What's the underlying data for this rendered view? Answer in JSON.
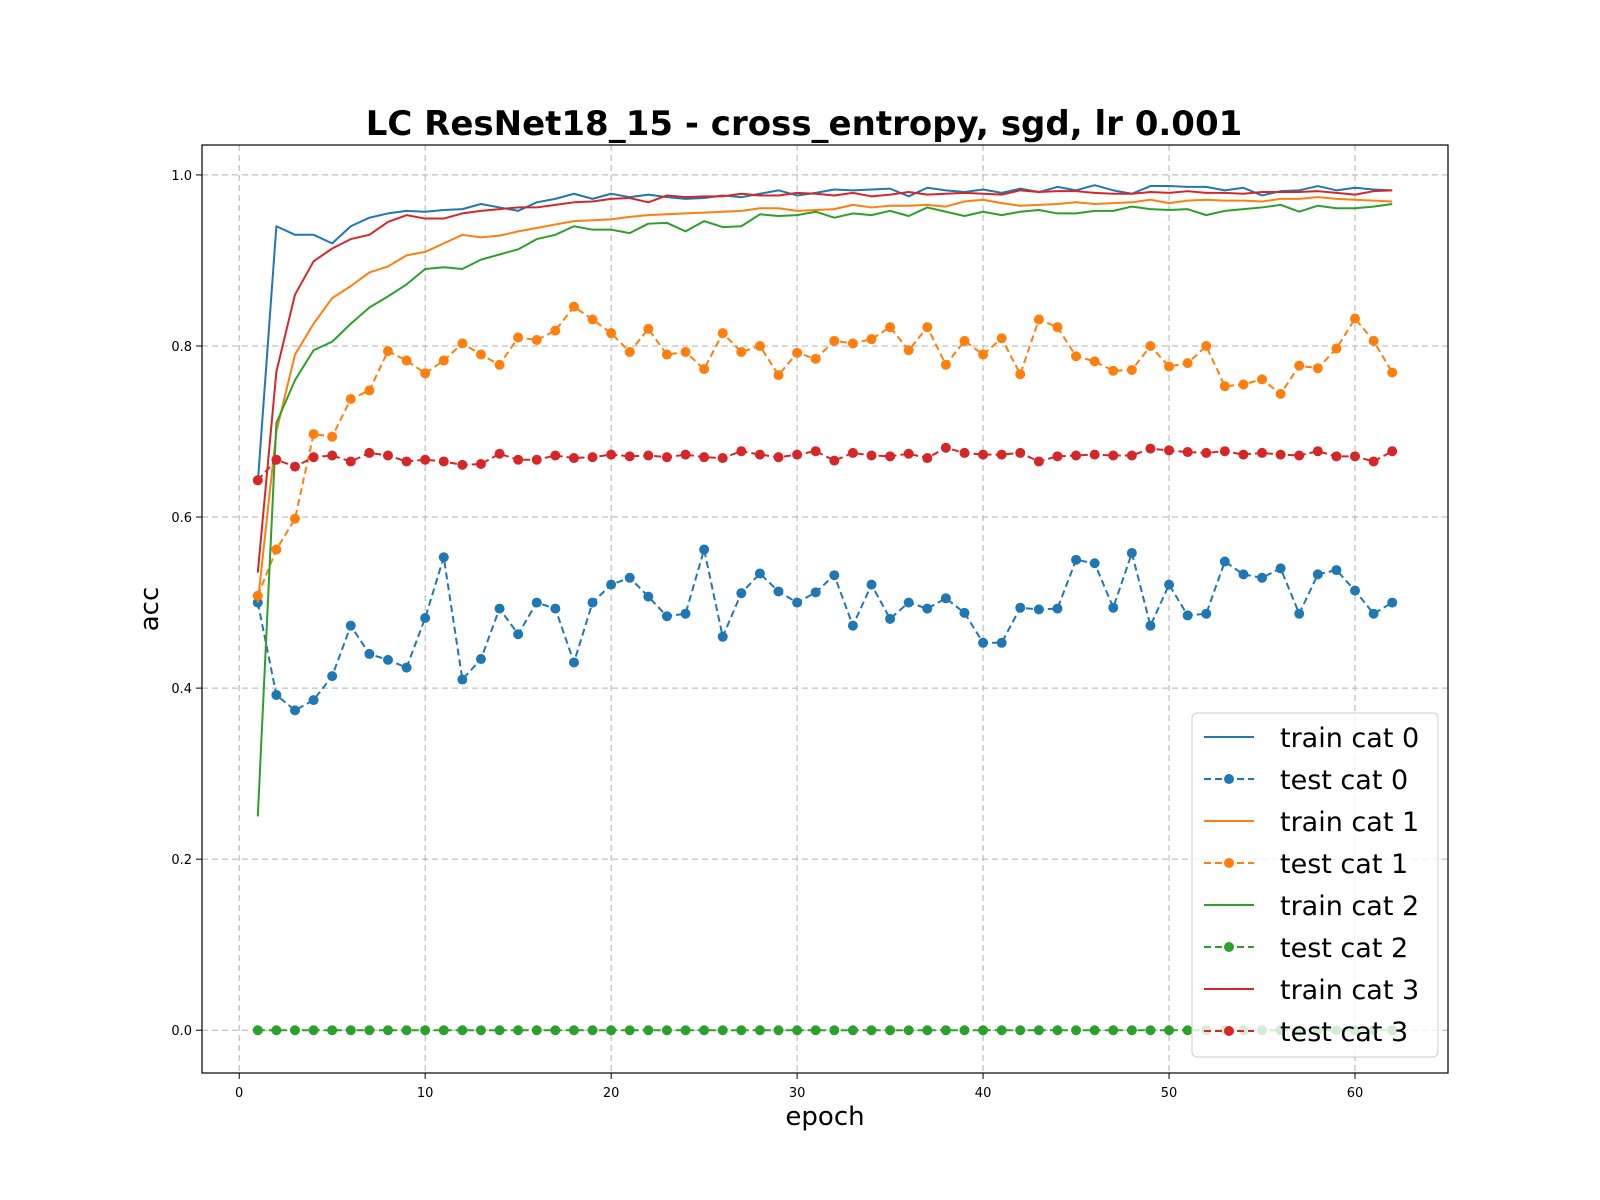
{
  "chart_data": {
    "type": "line",
    "title": "LC ResNet18_15 - cross_entropy, sgd, lr 0.001",
    "xlabel": "epoch",
    "ylabel": "acc",
    "xlim": [
      -2,
      65
    ],
    "ylim": [
      -0.05,
      1.035
    ],
    "xticks": [
      0,
      10,
      20,
      30,
      40,
      50,
      60
    ],
    "xtick_labels": [
      "0",
      "10",
      "20",
      "30",
      "40",
      "50",
      "60"
    ],
    "yticks": [
      0.0,
      0.2,
      0.4,
      0.6,
      0.8,
      1.0
    ],
    "ytick_labels": [
      "0.0",
      "0.2",
      "0.4",
      "0.6",
      "0.8",
      "1.0"
    ],
    "grid": true,
    "legend_position": "lower-right",
    "x": [
      1,
      2,
      3,
      4,
      5,
      6,
      7,
      8,
      9,
      10,
      11,
      12,
      13,
      14,
      15,
      16,
      17,
      18,
      19,
      20,
      21,
      22,
      23,
      24,
      25,
      26,
      27,
      28,
      29,
      30,
      31,
      32,
      33,
      34,
      35,
      36,
      37,
      38,
      39,
      40,
      41,
      42,
      43,
      44,
      45,
      46,
      47,
      48,
      49,
      50,
      51,
      52,
      53,
      54,
      55,
      56,
      57,
      58,
      59,
      60,
      61,
      62
    ],
    "series": [
      {
        "name": "train cat 0",
        "color": "#1f77b4",
        "dashed": false,
        "markers": false,
        "values": [
          0.64,
          0.94,
          0.93,
          0.93,
          0.92,
          0.94,
          0.95,
          0.955,
          0.958,
          0.957,
          0.959,
          0.96,
          0.966,
          0.962,
          0.958,
          0.968,
          0.972,
          0.978,
          0.972,
          0.978,
          0.974,
          0.977,
          0.974,
          0.972,
          0.973,
          0.976,
          0.974,
          0.978,
          0.982,
          0.976,
          0.979,
          0.983,
          0.982,
          0.983,
          0.984,
          0.975,
          0.985,
          0.982,
          0.98,
          0.983,
          0.979,
          0.984,
          0.98,
          0.986,
          0.982,
          0.988,
          0.982,
          0.978,
          0.987,
          0.987,
          0.986,
          0.986,
          0.982,
          0.985,
          0.976,
          0.981,
          0.982,
          0.987,
          0.982,
          0.985,
          0.983,
          0.982
        ]
      },
      {
        "name": "test cat 0",
        "color": "#1f77b4",
        "dashed": true,
        "markers": true,
        "values": [
          0.5,
          0.392,
          0.374,
          0.386,
          0.414,
          0.473,
          0.44,
          0.433,
          0.424,
          0.482,
          0.553,
          0.41,
          0.434,
          0.493,
          0.463,
          0.5,
          0.493,
          0.43,
          0.5,
          0.521,
          0.529,
          0.507,
          0.484,
          0.487,
          0.562,
          0.46,
          0.511,
          0.534,
          0.513,
          0.5,
          0.512,
          0.532,
          0.473,
          0.521,
          0.481,
          0.5,
          0.493,
          0.505,
          0.488,
          0.453,
          0.453,
          0.494,
          0.492,
          0.493,
          0.55,
          0.546,
          0.494,
          0.558,
          0.473,
          0.521,
          0.485,
          0.487,
          0.548,
          0.533,
          0.529,
          0.54,
          0.487,
          0.533,
          0.538,
          0.514,
          0.487,
          0.5
        ]
      },
      {
        "name": "train cat 1",
        "color": "#ff7f0e",
        "dashed": false,
        "markers": false,
        "values": [
          0.5,
          0.7,
          0.79,
          0.826,
          0.856,
          0.87,
          0.886,
          0.893,
          0.906,
          0.91,
          0.92,
          0.93,
          0.927,
          0.929,
          0.934,
          0.938,
          0.942,
          0.946,
          0.947,
          0.948,
          0.951,
          0.953,
          0.954,
          0.955,
          0.956,
          0.957,
          0.958,
          0.961,
          0.961,
          0.958,
          0.959,
          0.96,
          0.965,
          0.962,
          0.964,
          0.964,
          0.965,
          0.963,
          0.969,
          0.971,
          0.967,
          0.964,
          0.965,
          0.966,
          0.968,
          0.966,
          0.967,
          0.968,
          0.971,
          0.967,
          0.97,
          0.971,
          0.97,
          0.97,
          0.969,
          0.972,
          0.972,
          0.974,
          0.972,
          0.971,
          0.97,
          0.969
        ]
      },
      {
        "name": "test cat 1",
        "color": "#ff7f0e",
        "dashed": true,
        "markers": true,
        "values": [
          0.508,
          0.562,
          0.598,
          0.697,
          0.694,
          0.738,
          0.748,
          0.794,
          0.783,
          0.768,
          0.783,
          0.803,
          0.79,
          0.778,
          0.81,
          0.807,
          0.818,
          0.846,
          0.831,
          0.815,
          0.793,
          0.82,
          0.79,
          0.793,
          0.773,
          0.815,
          0.793,
          0.8,
          0.766,
          0.792,
          0.785,
          0.806,
          0.803,
          0.808,
          0.822,
          0.795,
          0.822,
          0.778,
          0.806,
          0.79,
          0.809,
          0.767,
          0.831,
          0.822,
          0.788,
          0.782,
          0.771,
          0.772,
          0.8,
          0.776,
          0.78,
          0.8,
          0.753,
          0.755,
          0.761,
          0.744,
          0.777,
          0.774,
          0.797,
          0.832,
          0.806,
          0.769
        ]
      },
      {
        "name": "train cat 2",
        "color": "#2ca02c",
        "dashed": false,
        "markers": false,
        "values": [
          0.25,
          0.71,
          0.76,
          0.795,
          0.805,
          0.826,
          0.845,
          0.858,
          0.872,
          0.89,
          0.892,
          0.89,
          0.901,
          0.907,
          0.913,
          0.925,
          0.93,
          0.94,
          0.936,
          0.936,
          0.932,
          0.943,
          0.944,
          0.934,
          0.946,
          0.939,
          0.94,
          0.954,
          0.952,
          0.953,
          0.957,
          0.95,
          0.955,
          0.953,
          0.958,
          0.952,
          0.962,
          0.957,
          0.952,
          0.957,
          0.953,
          0.957,
          0.959,
          0.955,
          0.955,
          0.958,
          0.958,
          0.963,
          0.96,
          0.959,
          0.96,
          0.953,
          0.958,
          0.96,
          0.962,
          0.965,
          0.957,
          0.964,
          0.961,
          0.961,
          0.963,
          0.966
        ]
      },
      {
        "name": "test cat 2",
        "color": "#2ca02c",
        "dashed": true,
        "markers": true,
        "values": [
          0,
          0,
          0,
          0,
          0,
          0,
          0,
          0,
          0,
          0,
          0,
          0,
          0,
          0,
          0,
          0,
          0,
          0,
          0,
          0,
          0,
          0,
          0,
          0,
          0,
          0,
          0,
          0,
          0,
          0,
          0,
          0,
          0,
          0,
          0,
          0,
          0,
          0,
          0,
          0,
          0,
          0,
          0,
          0,
          0,
          0,
          0,
          0,
          0,
          0,
          0,
          0,
          0,
          0,
          0,
          0,
          0,
          0,
          0,
          0,
          0,
          0
        ]
      },
      {
        "name": "train cat 3",
        "color": "#d62728",
        "dashed": false,
        "markers": false,
        "values": [
          0.535,
          0.77,
          0.86,
          0.899,
          0.914,
          0.925,
          0.93,
          0.945,
          0.953,
          0.949,
          0.949,
          0.955,
          0.958,
          0.96,
          0.962,
          0.962,
          0.965,
          0.968,
          0.969,
          0.972,
          0.973,
          0.968,
          0.976,
          0.974,
          0.975,
          0.975,
          0.978,
          0.976,
          0.976,
          0.979,
          0.978,
          0.976,
          0.979,
          0.975,
          0.977,
          0.98,
          0.977,
          0.978,
          0.979,
          0.978,
          0.977,
          0.982,
          0.98,
          0.981,
          0.981,
          0.979,
          0.978,
          0.978,
          0.98,
          0.979,
          0.981,
          0.979,
          0.979,
          0.978,
          0.98,
          0.98,
          0.98,
          0.981,
          0.979,
          0.977,
          0.981,
          0.982
        ]
      },
      {
        "name": "test cat 3",
        "color": "#d62728",
        "dashed": true,
        "markers": true,
        "values": [
          0.643,
          0.667,
          0.659,
          0.67,
          0.672,
          0.665,
          0.675,
          0.672,
          0.665,
          0.667,
          0.665,
          0.661,
          0.662,
          0.674,
          0.667,
          0.667,
          0.672,
          0.669,
          0.67,
          0.673,
          0.671,
          0.672,
          0.67,
          0.673,
          0.67,
          0.669,
          0.677,
          0.673,
          0.67,
          0.673,
          0.677,
          0.666,
          0.675,
          0.672,
          0.671,
          0.674,
          0.669,
          0.681,
          0.675,
          0.673,
          0.673,
          0.675,
          0.665,
          0.671,
          0.672,
          0.673,
          0.672,
          0.672,
          0.68,
          0.678,
          0.676,
          0.675,
          0.677,
          0.673,
          0.675,
          0.673,
          0.672,
          0.677,
          0.671,
          0.671,
          0.665,
          0.677
        ]
      }
    ]
  }
}
